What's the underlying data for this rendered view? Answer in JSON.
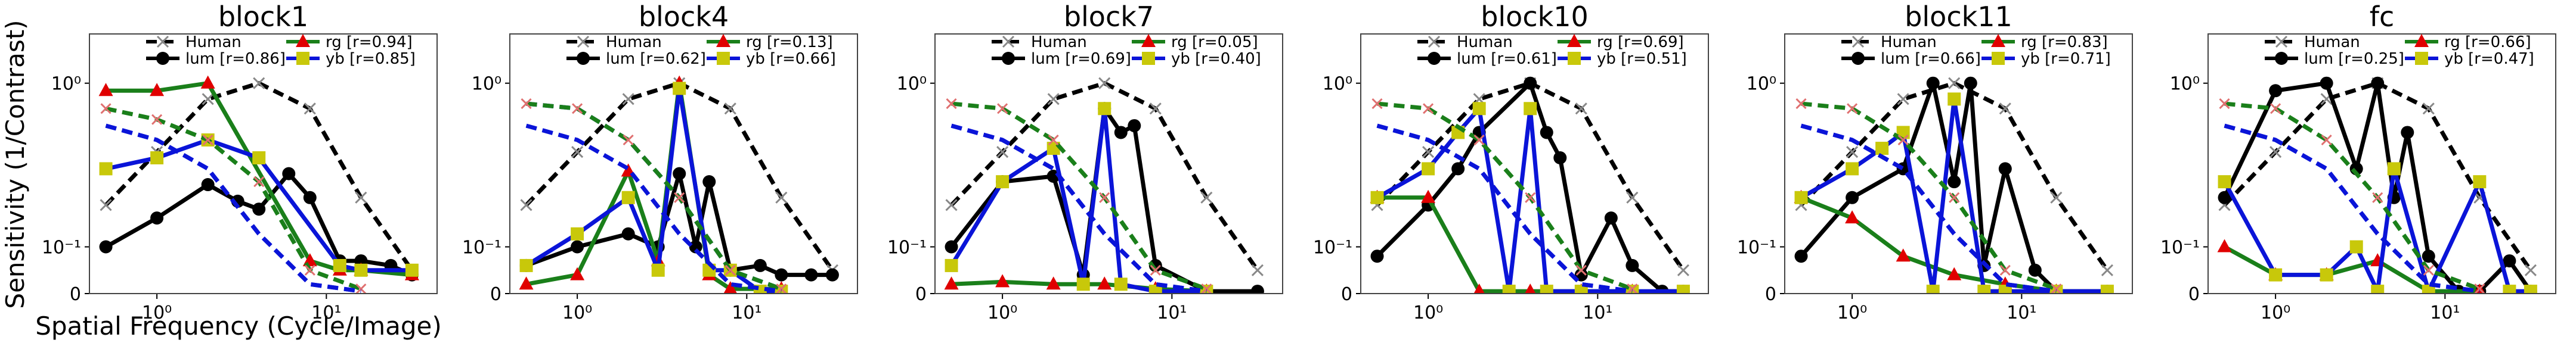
{
  "figure": {
    "ylabel": "Sensitivity (1/Contrast)",
    "xlabel": "Spatial Frequency (Cycle/Image)"
  },
  "legend_labels": {
    "human": "Human",
    "lum": "lum",
    "rg": "rg",
    "yb": "yb"
  },
  "colors": {
    "human": "#000000",
    "lum": "#000000",
    "rg": "#1a7f1a",
    "yb": "#0a14d8",
    "human_marker": "#888888",
    "human_x": "#e07070",
    "rg_marker": "#e00000",
    "yb_marker": "#c8c80a"
  },
  "chart_data": [
    {
      "type": "line",
      "title": "block1",
      "xscale": "log",
      "yscale": "symlog",
      "ylim": [
        0,
        2
      ],
      "yticks": [
        "0",
        "10⁻¹",
        "10⁰"
      ],
      "xticks": [
        "10⁰",
        "10¹"
      ],
      "legend": {
        "position": "top",
        "lum_r": "[r=0.86]",
        "rg_r": "[r=0.94]",
        "yb_r": "[r=0.85]"
      },
      "x": [
        0.5,
        1,
        2,
        4,
        8,
        16,
        32
      ],
      "series": [
        {
          "name": "Human",
          "key": "human",
          "values": [
            0.18,
            0.38,
            0.8,
            1.0,
            0.7,
            0.2,
            0.05
          ]
        },
        {
          "name": "lum",
          "key": "lum",
          "values": [
            0.1,
            0.15,
            0.24,
            0.19,
            0.17,
            0.28,
            0.2,
            0.07,
            0.07,
            0.06,
            0.04
          ],
          "x": [
            0.5,
            1,
            2,
            3,
            4,
            6,
            8,
            12,
            16,
            24,
            32
          ]
        },
        {
          "name": "rg",
          "key": "rg",
          "values": [
            0.9,
            0.9,
            1.0,
            0.07,
            0.05,
            0.05,
            0.04
          ],
          "x": [
            0.5,
            1,
            2,
            8,
            12,
            16,
            32
          ]
        },
        {
          "name": "yb",
          "key": "yb",
          "values": [
            0.3,
            0.35,
            0.45,
            0.35,
            0.06,
            0.05,
            0.05
          ],
          "x": [
            0.5,
            1,
            2,
            4,
            12,
            16,
            32
          ]
        },
        {
          "name": "human-lum-dashed",
          "key": "lum_dash",
          "values": [
            0.55,
            0.45,
            0.3,
            0.12,
            0.02,
            0.005
          ],
          "x": [
            0.5,
            1,
            2,
            4,
            8,
            16
          ]
        },
        {
          "name": "human-rg-dashed",
          "key": "rg_dash",
          "values": [
            0.7,
            0.6,
            0.45,
            0.25,
            0.05,
            0.01
          ],
          "x": [
            0.5,
            1,
            2,
            4,
            8,
            16
          ]
        },
        {
          "name": "human-yb-dashed",
          "key": "yb_dash",
          "values": [
            0.55,
            0.45,
            0.3,
            0.12,
            0.02,
            0.005
          ],
          "x": [
            0.5,
            1,
            2,
            4,
            8,
            16
          ]
        }
      ]
    },
    {
      "type": "line",
      "title": "block4",
      "xscale": "log",
      "yscale": "symlog",
      "ylim": [
        0,
        2
      ],
      "yticks": [
        "0",
        "10⁻¹",
        "10⁰"
      ],
      "xticks": [
        "10⁰",
        "10¹"
      ],
      "legend": {
        "position": "top",
        "lum_r": "[r=0.62]",
        "rg_r": "[r=0.13]",
        "yb_r": "[r=0.66]"
      },
      "x": [
        0.5,
        1,
        2,
        4,
        8,
        16,
        32
      ],
      "series": [
        {
          "name": "Human",
          "key": "human",
          "values": [
            0.18,
            0.38,
            0.8,
            1.0,
            0.7,
            0.2,
            0.05
          ]
        },
        {
          "name": "lum",
          "key": "lum",
          "values": [
            0.06,
            0.1,
            0.12,
            0.1,
            0.28,
            0.1,
            0.25,
            0.05,
            0.06,
            0.04,
            0.04,
            0.04
          ],
          "x": [
            0.5,
            1,
            2,
            3,
            4,
            5,
            6,
            8,
            12,
            16,
            24,
            32
          ]
        },
        {
          "name": "rg",
          "key": "rg",
          "values": [
            0.02,
            0.04,
            0.29,
            0.07,
            1.0,
            0.04,
            0.01,
            0.01
          ],
          "x": [
            0.5,
            1,
            2,
            3,
            4,
            6,
            8,
            16
          ]
        },
        {
          "name": "yb",
          "key": "yb",
          "values": [
            0.06,
            0.12,
            0.2,
            0.05,
            0.93,
            0.05,
            0.05,
            0.005,
            0.005
          ],
          "x": [
            0.5,
            1,
            2,
            3,
            4,
            6,
            8,
            12,
            16
          ]
        },
        {
          "name": "human-lum-dashed",
          "key": "lum_dash",
          "values": [
            0.75,
            0.7,
            0.45,
            0.2,
            0.05,
            0.01
          ],
          "x": [
            0.5,
            1,
            2,
            4,
            8,
            16
          ]
        },
        {
          "name": "human-rg-dashed",
          "key": "rg_dash",
          "values": [
            0.75,
            0.7,
            0.45,
            0.2,
            0.05,
            0.01
          ],
          "x": [
            0.5,
            1,
            2,
            4,
            8,
            16
          ]
        },
        {
          "name": "human-yb-dashed",
          "key": "yb_dash",
          "values": [
            0.55,
            0.45,
            0.3,
            0.12,
            0.02,
            0.005
          ],
          "x": [
            0.5,
            1,
            2,
            4,
            8,
            16
          ]
        }
      ]
    },
    {
      "type": "line",
      "title": "block7",
      "xscale": "log",
      "yscale": "symlog",
      "ylim": [
        0,
        2
      ],
      "yticks": [
        "0",
        "10⁻¹",
        "10⁰"
      ],
      "xticks": [
        "10⁰",
        "10¹"
      ],
      "legend": {
        "position": "top",
        "lum_r": "[r=0.69]",
        "rg_r": "[r=0.05]",
        "yb_r": "[r=0.40]"
      },
      "x": [
        0.5,
        1,
        2,
        4,
        8,
        16,
        32
      ],
      "series": [
        {
          "name": "Human",
          "key": "human",
          "values": [
            0.18,
            0.38,
            0.8,
            1.0,
            0.7,
            0.2,
            0.05
          ]
        },
        {
          "name": "lum",
          "key": "lum",
          "values": [
            0.1,
            0.25,
            0.27,
            0.04,
            0.7,
            0.5,
            0.55,
            0.06,
            0.005,
            0.005
          ],
          "x": [
            0.5,
            1,
            2,
            3,
            4,
            5,
            6,
            8,
            16,
            32
          ]
        },
        {
          "name": "rg",
          "key": "rg",
          "values": [
            0.02,
            0.025,
            0.02,
            0.02,
            0.01,
            0.005
          ],
          "x": [
            0.5,
            1,
            2,
            4,
            8,
            16
          ]
        },
        {
          "name": "yb",
          "key": "yb",
          "values": [
            0.06,
            0.25,
            0.4,
            0.02,
            0.7,
            0.02,
            0.005,
            0.005
          ],
          "x": [
            0.5,
            1,
            2,
            3,
            4,
            5,
            8,
            16
          ]
        },
        {
          "name": "human-lum-dashed",
          "key": "lum_dash",
          "values": [
            0.55,
            0.45,
            0.3,
            0.12,
            0.02,
            0.005
          ],
          "x": [
            0.5,
            1,
            2,
            4,
            8,
            16
          ]
        },
        {
          "name": "human-rg-dashed",
          "key": "rg_dash",
          "values": [
            0.75,
            0.7,
            0.45,
            0.2,
            0.05,
            0.01
          ],
          "x": [
            0.5,
            1,
            2,
            4,
            8,
            16
          ]
        },
        {
          "name": "human-yb-dashed",
          "key": "yb_dash",
          "values": [
            0.55,
            0.45,
            0.3,
            0.12,
            0.02,
            0.005
          ],
          "x": [
            0.5,
            1,
            2,
            4,
            8,
            16
          ]
        }
      ]
    },
    {
      "type": "line",
      "title": "block10",
      "xscale": "log",
      "yscale": "symlog",
      "ylim": [
        0,
        2
      ],
      "yticks": [
        "0",
        "10⁻¹",
        "10⁰"
      ],
      "xticks": [
        "10⁰",
        "10¹"
      ],
      "legend": {
        "position": "top",
        "lum_r": "[r=0.61]",
        "rg_r": "[r=0.69]",
        "yb_r": "[r=0.51]"
      },
      "x": [
        0.5,
        1,
        2,
        4,
        8,
        16,
        32
      ],
      "series": [
        {
          "name": "Human",
          "key": "human",
          "values": [
            0.18,
            0.38,
            0.8,
            1.0,
            0.7,
            0.2,
            0.05
          ]
        },
        {
          "name": "lum",
          "key": "lum",
          "values": [
            0.08,
            0.18,
            0.3,
            0.5,
            1.0,
            0.5,
            0.35,
            0.04,
            0.15,
            0.06,
            0.005,
            0.005
          ],
          "x": [
            0.5,
            1,
            1.5,
            2,
            4,
            5,
            6,
            8,
            12,
            16,
            24,
            32
          ]
        },
        {
          "name": "rg",
          "key": "rg",
          "values": [
            0.2,
            0.2,
            0.005,
            0.005,
            0.005,
            0.005
          ],
          "x": [
            0.5,
            1,
            2,
            4,
            8,
            16
          ]
        },
        {
          "name": "yb",
          "key": "yb",
          "values": [
            0.2,
            0.3,
            0.5,
            0.7,
            0.005,
            0.7,
            0.005,
            0.005,
            0.005,
            0.005
          ],
          "x": [
            0.5,
            1,
            1.5,
            2,
            3,
            4,
            5,
            8,
            16,
            32
          ]
        },
        {
          "name": "human-lum-dashed",
          "key": "lum_dash",
          "values": [
            0.55,
            0.45,
            0.3,
            0.12,
            0.02,
            0.005
          ],
          "x": [
            0.5,
            1,
            2,
            4,
            8,
            16
          ]
        },
        {
          "name": "human-rg-dashed",
          "key": "rg_dash",
          "values": [
            0.75,
            0.7,
            0.45,
            0.2,
            0.05,
            0.01
          ],
          "x": [
            0.5,
            1,
            2,
            4,
            8,
            16
          ]
        },
        {
          "name": "human-yb-dashed",
          "key": "yb_dash",
          "values": [
            0.55,
            0.45,
            0.3,
            0.12,
            0.02,
            0.005
          ],
          "x": [
            0.5,
            1,
            2,
            4,
            8,
            16
          ]
        }
      ]
    },
    {
      "type": "line",
      "title": "block11",
      "xscale": "log",
      "yscale": "symlog",
      "ylim": [
        0,
        2
      ],
      "yticks": [
        "0",
        "10⁻¹",
        "10⁰"
      ],
      "xticks": [
        "10⁰",
        "10¹"
      ],
      "legend": {
        "position": "top",
        "lum_r": "[r=0.66]",
        "rg_r": "[r=0.83]",
        "yb_r": "[r=0.71]"
      },
      "x": [
        0.5,
        1,
        2,
        4,
        8,
        16,
        32
      ],
      "series": [
        {
          "name": "Human",
          "key": "human",
          "values": [
            0.18,
            0.38,
            0.8,
            1.0,
            0.7,
            0.2,
            0.05
          ]
        },
        {
          "name": "lum",
          "key": "lum",
          "values": [
            0.08,
            0.2,
            0.3,
            1.0,
            0.25,
            1.0,
            0.06,
            0.3,
            0.05,
            0.005,
            0.005
          ],
          "x": [
            0.5,
            1,
            2,
            3,
            4,
            5,
            6,
            8,
            12,
            16,
            32
          ]
        },
        {
          "name": "rg",
          "key": "rg",
          "values": [
            0.2,
            0.15,
            0.08,
            0.04,
            0.02,
            0.005
          ],
          "x": [
            0.5,
            1,
            2,
            4,
            8,
            16
          ]
        },
        {
          "name": "yb",
          "key": "yb",
          "values": [
            0.2,
            0.3,
            0.4,
            0.5,
            0.005,
            0.8,
            0.005,
            0.005,
            0.005,
            0.005
          ],
          "x": [
            0.5,
            1,
            1.5,
            2,
            3,
            4,
            6,
            8,
            16,
            32
          ]
        },
        {
          "name": "human-lum-dashed",
          "key": "lum_dash",
          "values": [
            0.55,
            0.45,
            0.3,
            0.12,
            0.02,
            0.005
          ],
          "x": [
            0.5,
            1,
            2,
            4,
            8,
            16
          ]
        },
        {
          "name": "human-rg-dashed",
          "key": "rg_dash",
          "values": [
            0.75,
            0.7,
            0.45,
            0.2,
            0.05,
            0.01
          ],
          "x": [
            0.5,
            1,
            2,
            4,
            8,
            16
          ]
        },
        {
          "name": "human-yb-dashed",
          "key": "yb_dash",
          "values": [
            0.55,
            0.45,
            0.3,
            0.12,
            0.02,
            0.005
          ],
          "x": [
            0.5,
            1,
            2,
            4,
            8,
            16
          ]
        }
      ]
    },
    {
      "type": "line",
      "title": "fc",
      "xscale": "log",
      "yscale": "symlog",
      "ylim": [
        0,
        2
      ],
      "yticks": [
        "0",
        "10⁻¹",
        "10⁰"
      ],
      "xticks": [
        "10⁰",
        "10¹"
      ],
      "legend": {
        "position": "top",
        "lum_r": "[r=0.25]",
        "rg_r": "[r=0.66]",
        "yb_r": "[r=0.47]"
      },
      "x": [
        0.5,
        1,
        2,
        4,
        8,
        16,
        32
      ],
      "series": [
        {
          "name": "Human",
          "key": "human",
          "values": [
            0.18,
            0.38,
            0.8,
            1.0,
            0.7,
            0.2,
            0.05
          ]
        },
        {
          "name": "lum",
          "key": "lum",
          "values": [
            0.2,
            0.9,
            1.0,
            0.3,
            1.0,
            0.2,
            0.5,
            0.08,
            0.005,
            0.005,
            0.07,
            0.005
          ],
          "x": [
            0.5,
            1,
            2,
            3,
            4,
            5,
            6,
            8,
            12,
            16,
            24,
            32
          ]
        },
        {
          "name": "rg",
          "key": "rg",
          "values": [
            0.1,
            0.04,
            0.04,
            0.07,
            0.005,
            0.005
          ],
          "x": [
            0.5,
            1,
            2,
            4,
            8,
            16
          ]
        },
        {
          "name": "yb",
          "key": "yb",
          "values": [
            0.25,
            0.04,
            0.04,
            0.1,
            0.005,
            0.3,
            0.005,
            0.25,
            0.005,
            0.005
          ],
          "x": [
            0.5,
            1,
            2,
            3,
            4,
            5,
            8,
            16,
            24,
            32
          ]
        },
        {
          "name": "human-lum-dashed",
          "key": "lum_dash",
          "values": [
            0.55,
            0.45,
            0.3,
            0.12,
            0.02,
            0.005
          ],
          "x": [
            0.5,
            1,
            2,
            4,
            8,
            16
          ]
        },
        {
          "name": "human-rg-dashed",
          "key": "rg_dash",
          "values": [
            0.75,
            0.7,
            0.45,
            0.2,
            0.05,
            0.01
          ],
          "x": [
            0.5,
            1,
            2,
            4,
            8,
            16
          ]
        },
        {
          "name": "human-yb-dashed",
          "key": "yb_dash",
          "values": [
            0.55,
            0.45,
            0.3,
            0.12,
            0.02,
            0.005
          ],
          "x": [
            0.5,
            1,
            2,
            4,
            8,
            16
          ]
        }
      ]
    }
  ]
}
